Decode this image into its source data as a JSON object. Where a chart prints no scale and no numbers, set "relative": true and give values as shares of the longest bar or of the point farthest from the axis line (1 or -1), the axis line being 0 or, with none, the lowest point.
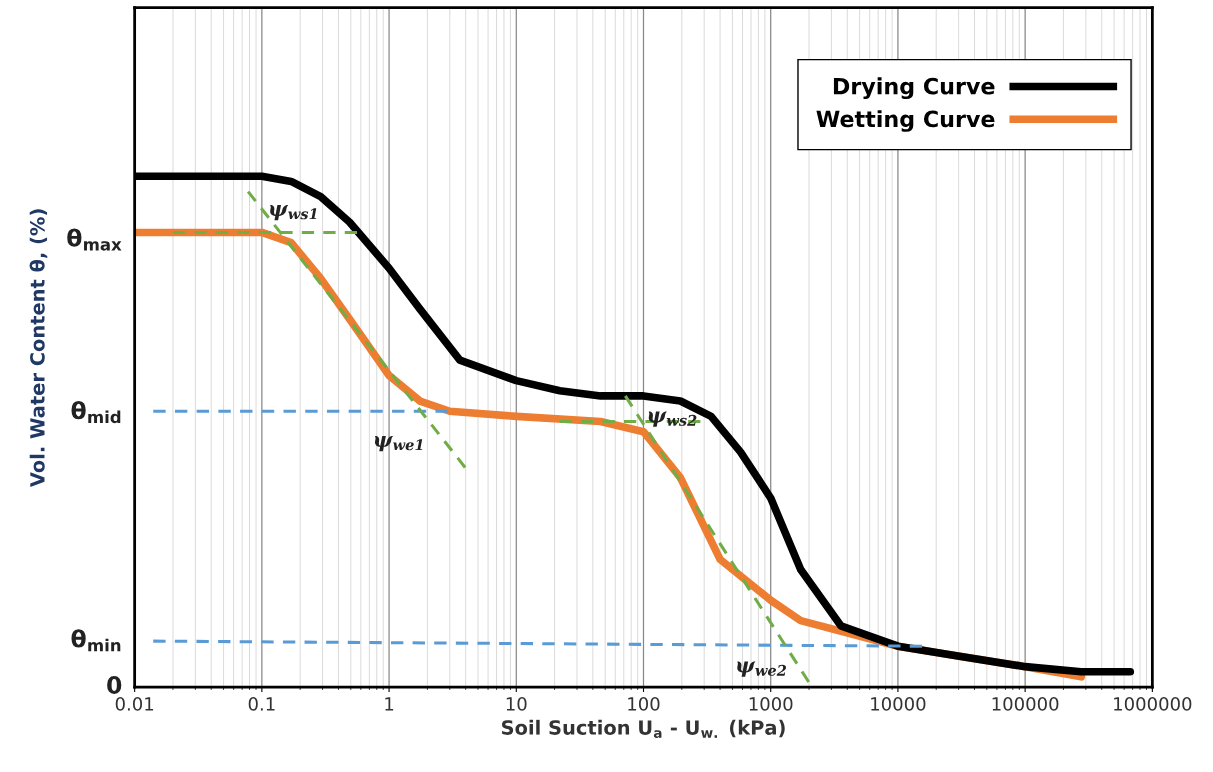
{
  "chart_data": {
    "type": "line",
    "relative": true,
    "log": "x",
    "grid": "x",
    "legend": "top right",
    "marker": "none",
    "xlabel": "Soil Suction U$_{a}$ - U$_{w.}$ (kPa)",
    "ylabel": "Vol. Water Content θ, (%)",
    "xlim": [
      0.01,
      1000000
    ],
    "xticks": [
      0.01,
      0.1,
      1,
      10,
      100,
      1000,
      10000,
      100000,
      1000000
    ],
    "series": [
      {
        "name": "Drying Curve",
        "color": "#000000",
        "x": [
          0.01,
          0.1,
          0.17,
          0.29,
          0.49,
          1,
          1.75,
          3.6,
          10,
          22,
          46,
          100,
          195,
          340,
          580,
          1000,
          1720,
          3560,
          10000,
          31300,
          100000,
          276000,
          671000
        ],
        "values": [
          1.0,
          1.0,
          0.99,
          0.96,
          0.91,
          0.82,
          0.74,
          0.64,
          0.6,
          0.58,
          0.57,
          0.57,
          0.56,
          0.53,
          0.46,
          0.37,
          0.23,
          0.12,
          0.08,
          0.06,
          0.04,
          0.03,
          0.03
        ]
      },
      {
        "name": "Wetting Curve",
        "color": "#ed7d31",
        "x": [
          0.01,
          0.1,
          0.17,
          0.29,
          0.49,
          1,
          1.75,
          3,
          10,
          46,
          100,
          195,
          400,
          1000,
          1720,
          10000,
          31300,
          100000,
          276000
        ],
        "values": [
          0.89,
          0.89,
          0.87,
          0.8,
          0.72,
          0.61,
          0.56,
          0.54,
          0.53,
          0.52,
          0.5,
          0.41,
          0.25,
          0.17,
          0.13,
          0.08,
          0.06,
          0.04,
          0.02
        ]
      },
      {
        "color": "#5b9bd5",
        "line_style": "dashed",
        "x": [
          0.014,
          2.9
        ],
        "values": [
          0.54,
          0.54
        ]
      },
      {
        "color": "#5b9bd5",
        "line_style": "dashed",
        "x": [
          0.014,
          15500
        ],
        "values": [
          0.09,
          0.08
        ]
      },
      {
        "color": "#70ad47",
        "line_style": "dashed",
        "x": [
          0.02,
          0.56
        ],
        "values": [
          0.89,
          0.89
        ]
      },
      {
        "color": "#70ad47",
        "line_style": "dashed",
        "x": [
          0.078,
          3.96
        ],
        "values": [
          0.97,
          0.43
        ]
      },
      {
        "color": "#70ad47",
        "line_style": "dashed",
        "x": [
          22,
          280
        ],
        "values": [
          0.52,
          0.52
        ]
      },
      {
        "color": "#70ad47",
        "line_style": "dashed",
        "x": [
          72,
          1990
        ],
        "values": [
          0.57,
          0.01
        ]
      }
    ],
    "annotations": [
      "θ$_{max}$",
      "θ$_{mid}$",
      "θ$_{min}$",
      "0",
      "ψ$_{ws1}$",
      "ψ$_{we1}$",
      "ψ$_{ws2}$",
      "ψ$_{we2}$"
    ]
  }
}
